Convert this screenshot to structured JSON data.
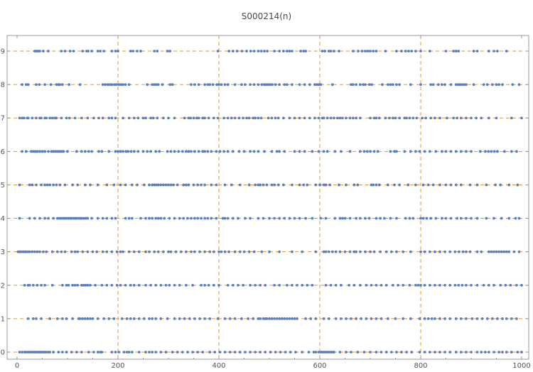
{
  "chart_data": {
    "type": "scatter",
    "title": "S000214(n)",
    "xlabel": "",
    "ylabel": "",
    "xlim": [
      0,
      1000
    ],
    "ylim": [
      0,
      9
    ],
    "x_ticks": [
      0,
      200,
      400,
      600,
      800,
      1000
    ],
    "y_ticks": [
      0,
      1,
      2,
      3,
      4,
      5,
      6,
      7,
      8,
      9
    ],
    "grid_x": [
      200,
      400,
      600,
      800
    ],
    "grid_y": [
      0,
      1,
      2,
      3,
      4,
      5,
      6,
      7,
      8,
      9
    ],
    "grid": true,
    "legend": "none",
    "colors": {
      "points": "#5b7fbf",
      "grid": "#e0952a",
      "frame": "#9a9a9a"
    },
    "series": [
      {
        "y": 9,
        "x": [
          35,
          38,
          41,
          45,
          52,
          62,
          88,
          95,
          105,
          112,
          130,
          138,
          141,
          148,
          160,
          165,
          172,
          188,
          195,
          200,
          225,
          230,
          238,
          245,
          272,
          278,
          298,
          303,
          398,
          420,
          428,
          436,
          446,
          455,
          463,
          470,
          478,
          484,
          490,
          496,
          510,
          520,
          528,
          535,
          540,
          545,
          562,
          568,
          572,
          605,
          610,
          618,
          622,
          628,
          638,
          666,
          676,
          684,
          690,
          695,
          700,
          706,
          712,
          730,
          752,
          762,
          770,
          776,
          782,
          790,
          800,
          818,
          850,
          865,
          870,
          875,
          905,
          912,
          935,
          945,
          952,
          970
        ]
      },
      {
        "y": 8,
        "x": [
          10,
          18,
          22,
          38,
          44,
          55,
          67,
          78,
          82,
          85,
          90,
          103,
          125,
          170,
          175,
          180,
          184,
          188,
          193,
          197,
          202,
          206,
          210,
          215,
          222,
          258,
          268,
          272,
          276,
          280,
          288,
          303,
          308,
          345,
          352,
          360,
          372,
          378,
          382,
          388,
          396,
          400,
          405,
          412,
          418,
          432,
          445,
          452,
          462,
          470,
          478,
          485,
          490,
          494,
          498,
          502,
          506,
          512,
          520,
          530,
          535,
          545,
          560,
          570,
          580,
          590,
          594,
          598,
          602,
          625,
          662,
          666,
          672,
          680,
          686,
          690,
          698,
          703,
          724,
          735,
          740,
          745,
          752,
          758,
          780,
          800,
          820,
          825,
          835,
          842,
          848,
          860,
          870,
          874,
          878,
          882,
          886,
          890,
          905,
          925,
          932,
          942,
          950,
          955,
          962,
          982,
          995
        ]
      },
      {
        "y": 7,
        "x": [
          5,
          10,
          14,
          20,
          22,
          30,
          38,
          45,
          48,
          55,
          58,
          65,
          70,
          75,
          78,
          88,
          98,
          104,
          115,
          128,
          140,
          152,
          162,
          170,
          182,
          188,
          195,
          210,
          222,
          232,
          240,
          250,
          255,
          265,
          270,
          278,
          290,
          300,
          312,
          332,
          340,
          344,
          350,
          356,
          360,
          368,
          372,
          380,
          390,
          398,
          410,
          418,
          425,
          432,
          440,
          448,
          455,
          460,
          468,
          472,
          478,
          484,
          498,
          505,
          512,
          518,
          528,
          540,
          550,
          560,
          570,
          580,
          590,
          598,
          605,
          608,
          615,
          622,
          628,
          635,
          640,
          645,
          652,
          660,
          666,
          672,
          680,
          700,
          708,
          712,
          718,
          730,
          738,
          745,
          750,
          758,
          768,
          772,
          778,
          785,
          792,
          803,
          810,
          820,
          828,
          838,
          852,
          865,
          872,
          880,
          890,
          900,
          910,
          920,
          935,
          950,
          980,
          1000
        ]
      },
      {
        "y": 6,
        "x": [
          10,
          18,
          28,
          32,
          36,
          40,
          45,
          50,
          55,
          62,
          68,
          72,
          76,
          80,
          84,
          88,
          92,
          100,
          118,
          128,
          135,
          142,
          148,
          162,
          168,
          182,
          195,
          200,
          205,
          210,
          216,
          220,
          226,
          232,
          240,
          250,
          258,
          265,
          275,
          282,
          298,
          305,
          312,
          320,
          328,
          335,
          340,
          345,
          352,
          360,
          368,
          372,
          378,
          385,
          395,
          402,
          410,
          418,
          428,
          440,
          450,
          462,
          470,
          478,
          490,
          505,
          515,
          520,
          530,
          550,
          560,
          570,
          585,
          598,
          608,
          615,
          630,
          642,
          660,
          680,
          688,
          694,
          700,
          708,
          715,
          740,
          748,
          752,
          768,
          780,
          790,
          798,
          808,
          818,
          830,
          842,
          850,
          860,
          870,
          880,
          890,
          900,
          918,
          928,
          934,
          940,
          946,
          952,
          966,
          980,
          990
        ]
      },
      {
        "y": 5,
        "x": [
          5,
          25,
          30,
          38,
          48,
          55,
          60,
          65,
          72,
          78,
          85,
          95,
          110,
          120,
          135,
          145,
          160,
          178,
          192,
          205,
          215,
          228,
          238,
          252,
          262,
          268,
          272,
          276,
          280,
          285,
          290,
          295,
          300,
          305,
          310,
          318,
          330,
          335,
          340,
          350,
          358,
          365,
          372,
          385,
          395,
          412,
          425,
          442,
          460,
          472,
          478,
          482,
          488,
          495,
          505,
          510,
          518,
          528,
          545,
          560,
          568,
          575,
          592,
          600,
          608,
          612,
          620,
          638,
          652,
          668,
          675,
          702,
          706,
          712,
          718,
          735,
          748,
          758,
          775,
          790,
          805,
          815,
          825,
          838,
          850,
          860,
          870,
          880,
          898,
          912,
          930,
          948,
          958,
          975,
          992
        ]
      },
      {
        "y": 4,
        "x": [
          5,
          25,
          35,
          45,
          55,
          62,
          72,
          80,
          84,
          88,
          92,
          95,
          98,
          102,
          105,
          108,
          112,
          115,
          118,
          122,
          125,
          128,
          132,
          136,
          140,
          148,
          160,
          170,
          178,
          188,
          195,
          215,
          222,
          228,
          245,
          255,
          262,
          268,
          275,
          280,
          285,
          292,
          302,
          312,
          322,
          330,
          338,
          345,
          352,
          358,
          365,
          372,
          378,
          385,
          395,
          408,
          412,
          418,
          428,
          438,
          452,
          462,
          478,
          488,
          500,
          510,
          520,
          530,
          540,
          550,
          560,
          572,
          585,
          602,
          612,
          630,
          640,
          645,
          650,
          660,
          672,
          680,
          690,
          698,
          712,
          720,
          728,
          740,
          752,
          770,
          778,
          785,
          800,
          805,
          812,
          820,
          830,
          842,
          850,
          860,
          872,
          880,
          890,
          900,
          912,
          930,
          945,
          960,
          975,
          988,
          995
        ]
      },
      {
        "y": 3,
        "x": [
          2,
          5,
          8,
          12,
          15,
          18,
          22,
          25,
          30,
          35,
          40,
          45,
          52,
          58,
          70,
          80,
          88,
          95,
          108,
          115,
          120,
          130,
          140,
          150,
          158,
          170,
          178,
          188,
          198,
          205,
          210,
          222,
          232,
          242,
          255,
          262,
          272,
          280,
          290,
          300,
          305,
          315,
          325,
          335,
          345,
          352,
          362,
          372,
          382,
          390,
          400,
          405,
          412,
          420,
          432,
          442,
          450,
          460,
          470,
          485,
          500,
          520,
          545,
          565,
          592,
          608,
          612,
          618,
          625,
          632,
          640,
          650,
          660,
          668,
          672,
          680,
          690,
          700,
          708,
          720,
          732,
          742,
          752,
          765,
          780,
          800,
          808,
          818,
          828,
          838,
          848,
          858,
          868,
          876,
          884,
          890,
          898,
          912,
          920,
          935,
          940,
          945,
          950,
          955,
          960,
          965,
          970,
          975,
          985,
          995
        ]
      },
      {
        "y": 2,
        "x": [
          15,
          22,
          25,
          32,
          40,
          48,
          55,
          70,
          90,
          98,
          102,
          110,
          115,
          120,
          128,
          132,
          136,
          140,
          145,
          155,
          168,
          178,
          188,
          198,
          205,
          215,
          225,
          232,
          242,
          255,
          265,
          275,
          285,
          295,
          302,
          312,
          322,
          335,
          348,
          365,
          372,
          380,
          390,
          400,
          418,
          428,
          438,
          448,
          462,
          472,
          482,
          492,
          510,
          520,
          535,
          545,
          555,
          565,
          575,
          585,
          612,
          622,
          632,
          642,
          658,
          668,
          680,
          692,
          702,
          712,
          722,
          732,
          745,
          755,
          765,
          778,
          790,
          795,
          800,
          808,
          818,
          828,
          838,
          848,
          858,
          868,
          875,
          882,
          890,
          900,
          912,
          925,
          935,
          945,
          958,
          968,
          978,
          990,
          1000
        ]
      },
      {
        "y": 1,
        "x": [
          22,
          32,
          38,
          48,
          65,
          80,
          90,
          98,
          110,
          122,
          125,
          130,
          135,
          140,
          145,
          150,
          160,
          172,
          182,
          192,
          208,
          218,
          225,
          232,
          242,
          252,
          262,
          268,
          275,
          285,
          298,
          312,
          322,
          332,
          342,
          352,
          362,
          372,
          382,
          398,
          412,
          422,
          432,
          445,
          458,
          468,
          478,
          482,
          488,
          492,
          495,
          500,
          505,
          510,
          515,
          520,
          525,
          530,
          535,
          540,
          545,
          550,
          555,
          572,
          582,
          592,
          608,
          618,
          632,
          642,
          652,
          662,
          672,
          682,
          692,
          702,
          712,
          722,
          735,
          750,
          765,
          780,
          798,
          808,
          815,
          822,
          828,
          838,
          848,
          858,
          870,
          880,
          890,
          902,
          912,
          922,
          932,
          942,
          952,
          962,
          970,
          980,
          990
        ]
      },
      {
        "y": 0,
        "x": [
          5,
          10,
          15,
          18,
          22,
          25,
          28,
          32,
          35,
          38,
          42,
          45,
          48,
          52,
          55,
          58,
          62,
          65,
          72,
          82,
          90,
          98,
          108,
          118,
          128,
          142,
          152,
          160,
          165,
          168,
          188,
          195,
          202,
          212,
          218,
          222,
          228,
          242,
          255,
          262,
          268,
          275,
          285,
          295,
          308,
          318,
          328,
          338,
          348,
          358,
          368,
          382,
          392,
          402,
          412,
          422,
          432,
          442,
          452,
          462,
          472,
          482,
          492,
          502,
          512,
          522,
          532,
          542,
          552,
          565,
          578,
          588,
          592,
          598,
          602,
          605,
          608,
          612,
          615,
          618,
          622,
          625,
          628,
          640,
          652,
          662,
          675,
          688,
          700,
          712,
          722,
          732,
          742,
          752,
          762,
          772,
          782,
          798,
          808,
          818,
          828,
          838,
          848,
          858,
          870,
          880,
          890,
          900,
          912,
          920,
          928,
          935,
          945,
          955,
          962,
          970,
          980,
          992,
          1000
        ]
      }
    ]
  }
}
